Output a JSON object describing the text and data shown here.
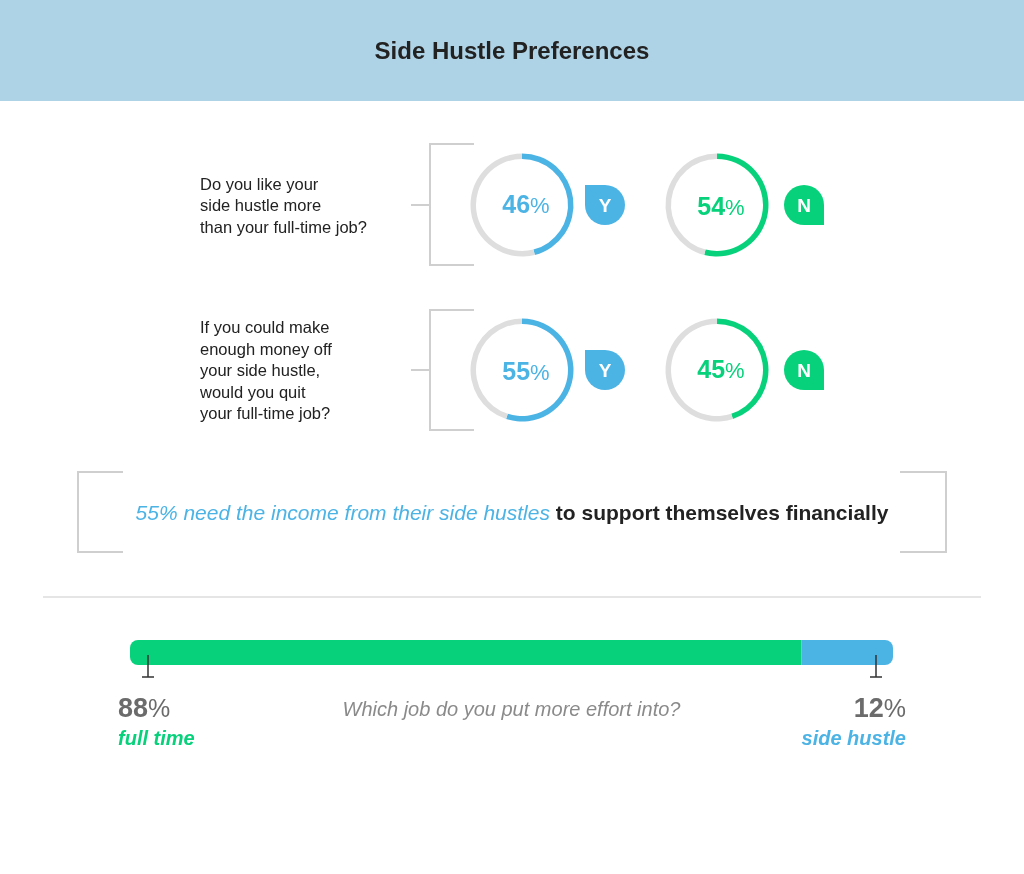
{
  "chart_data": [
    {
      "type": "other",
      "title": "Side Hustle Preferences"
    },
    {
      "type": "donut",
      "title": "Do you like your\nside hustle more\nthan your full-time job?",
      "categories": [
        "Y",
        null
      ],
      "values": [
        46,
        54
      ],
      "colors": [
        "#4cb3e5",
        "#dedede"
      ],
      "value_labels": [
        "46%",
        null
      ]
    },
    {
      "type": "donut",
      "categories": [
        "N",
        null
      ],
      "values": [
        54,
        46
      ],
      "colors": [
        "#07d27b",
        "#dedede"
      ],
      "value_labels": [
        "54%",
        null
      ]
    },
    {
      "type": "donut",
      "title": "If you could make\nenough money off\nyour side hustle,\nwould you quit\nyour full-time job?",
      "categories": [
        "Y",
        null
      ],
      "values": [
        55,
        45
      ],
      "colors": [
        "#4cb3e5",
        "#dedede"
      ],
      "value_labels": [
        "55%",
        null
      ]
    },
    {
      "type": "donut",
      "categories": [
        "N",
        null
      ],
      "values": [
        45,
        55
      ],
      "colors": [
        "#07d27b",
        "#dedede"
      ],
      "value_labels": [
        "45%",
        null
      ]
    },
    {
      "type": "other",
      "annotations": [
        "55% need the income from their side hustles",
        "to support themselves financially"
      ]
    },
    {
      "type": "bar",
      "orientation": "horizontal",
      "stacked": true,
      "categories": [
        null
      ],
      "xlabel": "Which job do you put more effort into?",
      "series": [
        {
          "name": "full time",
          "color": "#07d27b",
          "values": [
            88
          ],
          "value_labels": [
            "88%"
          ]
        },
        {
          "name": "side hustle",
          "color": "#4cb3e5",
          "values": [
            12
          ],
          "value_labels": [
            "12%"
          ]
        }
      ]
    }
  ]
}
